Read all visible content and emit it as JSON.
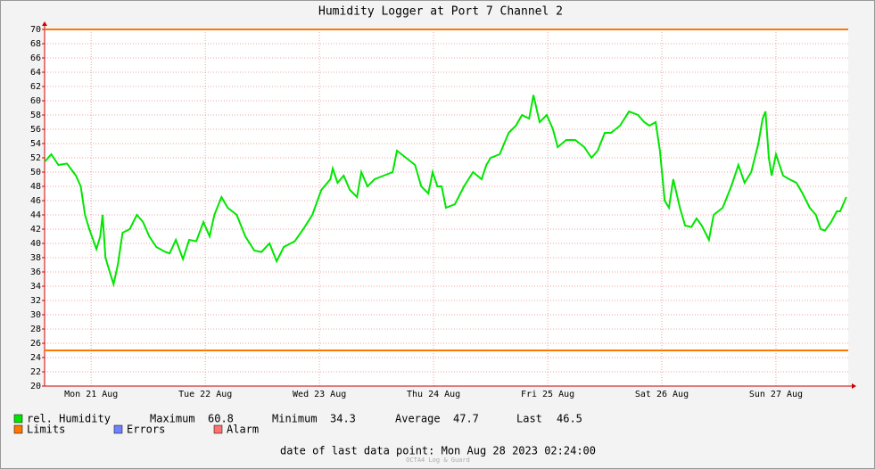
{
  "chart_data": {
    "type": "line",
    "title": "Humidity Logger at Port 7 Channel 2",
    "x": [
      2.3,
      3.6,
      5.1,
      6.9,
      8.8,
      9.8,
      10.7,
      11.6,
      13.1,
      13.9,
      14.4,
      15.0,
      15.9,
      16.7,
      17.6,
      18.6,
      20.1,
      21.6,
      22.9,
      24.2,
      25.7,
      27.6,
      28.5,
      29.8,
      31.3,
      32.6,
      34.1,
      35.6,
      36.9,
      37.9,
      39.4,
      40.7,
      42.6,
      44.4,
      46.3,
      47.8,
      49.5,
      51.0,
      52.5,
      54.8,
      56.6,
      58.5,
      60.4,
      62.3,
      62.8,
      63.8,
      65.1,
      66.4,
      67.9,
      68.8,
      70.1,
      71.6,
      73.5,
      75.4,
      76.3,
      78.2,
      80.1,
      81.4,
      82.9,
      83.8,
      84.8,
      85.7,
      86.6,
      88.5,
      90.4,
      92.3,
      94.1,
      95.1,
      96.0,
      97.9,
      99.8,
      101.3,
      102.6,
      104.1,
      105.0,
      106.3,
      107.8,
      109.1,
      110.1,
      111.9,
      113.8,
      115.7,
      117.2,
      118.5,
      120.0,
      121.3,
      123.2,
      125.1,
      127.0,
      128.3,
      129.4,
      130.7,
      131.6,
      132.6,
      133.5,
      134.4,
      135.8,
      136.9,
      138.2,
      139.3,
      140.4,
      141.9,
      142.9,
      144.8,
      145.7,
      146.6,
      148.1,
      149.4,
      150.8,
      152.3,
      153.2,
      153.8,
      154.5,
      155.1,
      156.0,
      157.5,
      158.8,
      160.3,
      161.6,
      163.1,
      164.4,
      165.4,
      166.3,
      167.6,
      168.8,
      169.5,
      170.8
    ],
    "series": [
      {
        "name": "rel. Humidity",
        "color": "#00e600",
        "values": [
          51.5,
          52.5,
          51,
          51.2,
          49.5,
          48,
          44,
          42,
          39.2,
          41,
          44,
          38,
          36,
          34.3,
          37,
          41.5,
          42,
          44,
          43,
          41,
          39.5,
          38.8,
          38.6,
          40.5,
          37.8,
          40.5,
          40.3,
          43,
          41,
          44,
          46.5,
          45,
          44,
          41,
          39,
          38.8,
          40,
          37.5,
          39.5,
          40.3,
          42,
          44,
          47.5,
          49,
          50.5,
          48.5,
          49.5,
          47.5,
          46.5,
          50,
          48,
          49,
          49.5,
          50,
          53,
          52,
          51,
          48,
          47,
          50,
          48,
          48,
          45,
          45.5,
          48,
          50,
          49,
          51,
          52,
          52.5,
          55.5,
          56.5,
          58,
          57.5,
          60.8,
          57,
          58,
          56,
          53.5,
          54.5,
          54.5,
          53.5,
          52,
          53,
          55.5,
          55.5,
          56.5,
          58.5,
          58,
          57,
          56.5,
          57,
          53,
          46,
          45,
          49,
          45,
          42.5,
          42.3,
          43.5,
          42.5,
          40.5,
          44,
          45,
          46.5,
          48,
          51,
          48.5,
          50,
          54,
          57.5,
          58.5,
          52,
          49.5,
          52.5,
          49.5,
          49,
          48.5,
          47,
          45,
          44,
          42,
          41.8,
          43,
          44.5,
          44.5,
          46.5
        ]
      }
    ],
    "xlim": [
      2.2,
      171.2
    ],
    "xticks": [
      {
        "value": 12,
        "label": "Mon 21 Aug"
      },
      {
        "value": 36,
        "label": "Tue 22 Aug"
      },
      {
        "value": 60,
        "label": "Wed 23 Aug"
      },
      {
        "value": 84,
        "label": "Thu 24 Aug"
      },
      {
        "value": 108,
        "label": "Fri 25 Aug"
      },
      {
        "value": 132,
        "label": "Sat 26 Aug"
      },
      {
        "value": 156,
        "label": "Sun 27 Aug"
      }
    ],
    "ylim": [
      20,
      70
    ],
    "yticks": [
      20,
      22,
      24,
      26,
      28,
      30,
      32,
      34,
      36,
      38,
      40,
      42,
      44,
      46,
      48,
      50,
      52,
      54,
      56,
      58,
      60,
      62,
      64,
      66,
      68,
      70
    ],
    "grid": true,
    "limits": {
      "name": "Limits",
      "color": "#ff7700",
      "values": [
        70,
        25
      ]
    },
    "legend_extra": [
      {
        "name": "Errors",
        "color": "#7080ff"
      },
      {
        "name": "Alarm",
        "color": "#ff7070"
      }
    ],
    "stats": [
      {
        "label": "Maximum",
        "value": 60.8
      },
      {
        "label": "Minimum",
        "value": 34.3
      },
      {
        "label": "Average",
        "value": 47.7
      },
      {
        "label": "Last",
        "value": 46.5
      }
    ],
    "footer": "date of last data point:  Mon Aug 28 2023 02:24:00",
    "watermark": "OCTA4 Log & Guard"
  }
}
